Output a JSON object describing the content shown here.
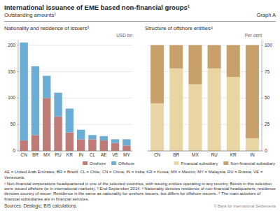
{
  "title": "International issuance of EME based non-financial groups¹",
  "subtitle": "Outstanding amounts²",
  "graph_label": "Graph A",
  "notes": [
    "AE = United Arab Emirates; BR = Brazil; CL = Chile; CN = China; IN = India; KR = Korea; MX = Mexico; MY = Malaysia; RU = Russia;\nVE = Venezuela.",
    "¹ Non-financial corporations headquartered in one of the selected countries, with issuing entities operating in any country. Bonds in this\nselection were issued offshore (ie in international markets).  ² End-September 2014.  ³ Nationality denotes residence of non-financial\nheadquarters; residence denotes country of issuer. Residence is the same as nationality for onshore issuers, but differs for offshore\nissuers.  ⁴ The main activities of financial subsidiaries are in financial services."
  ],
  "source": "Sources: Dealogic; BIS calculations.",
  "copyright": "© Bank for International Settlements",
  "chart_data": [
    {
      "type": "bar",
      "stacked": true,
      "title": "Nationality and residence of issuers³",
      "y_label": "USD bn",
      "categories": [
        "CN",
        "BR",
        "MX",
        "RU",
        "KR",
        "IN",
        "CL",
        "AE",
        "VE",
        "MY"
      ],
      "series": [
        {
          "name": "Onshore",
          "color": "#c17b76",
          "values": [
            20,
            30,
            100,
            65,
            35,
            22,
            22,
            20,
            15,
            10
          ]
        },
        {
          "name": "Offshore",
          "color": "#6aaed6",
          "values": [
            185,
            130,
            42,
            45,
            45,
            18,
            8,
            8,
            7,
            12
          ]
        }
      ],
      "ylim": [
        0,
        210
      ],
      "yticks": [
        0,
        50,
        100,
        150,
        200
      ],
      "grid": true,
      "legend": "lower right"
    },
    {
      "type": "bar",
      "stacked": true,
      "title": "Structure of offshore entities⁴",
      "y_label": "Per cent",
      "categories": [
        "CN",
        "BR",
        "MX",
        "RU",
        "KR",
        "IN"
      ],
      "series": [
        {
          "name": "Financial subsidiary",
          "color": "#e8d5a3",
          "values": [
            45,
            78,
            63,
            78,
            70,
            12
          ]
        },
        {
          "name": "Non-financial subsidiary",
          "color": "#c8a06a",
          "values": [
            55,
            22,
            37,
            22,
            30,
            88
          ]
        }
      ],
      "ylim": [
        0,
        105
      ],
      "yticks": [
        0,
        25,
        50,
        75,
        100
      ],
      "grid": true,
      "legend": "lower right"
    }
  ]
}
